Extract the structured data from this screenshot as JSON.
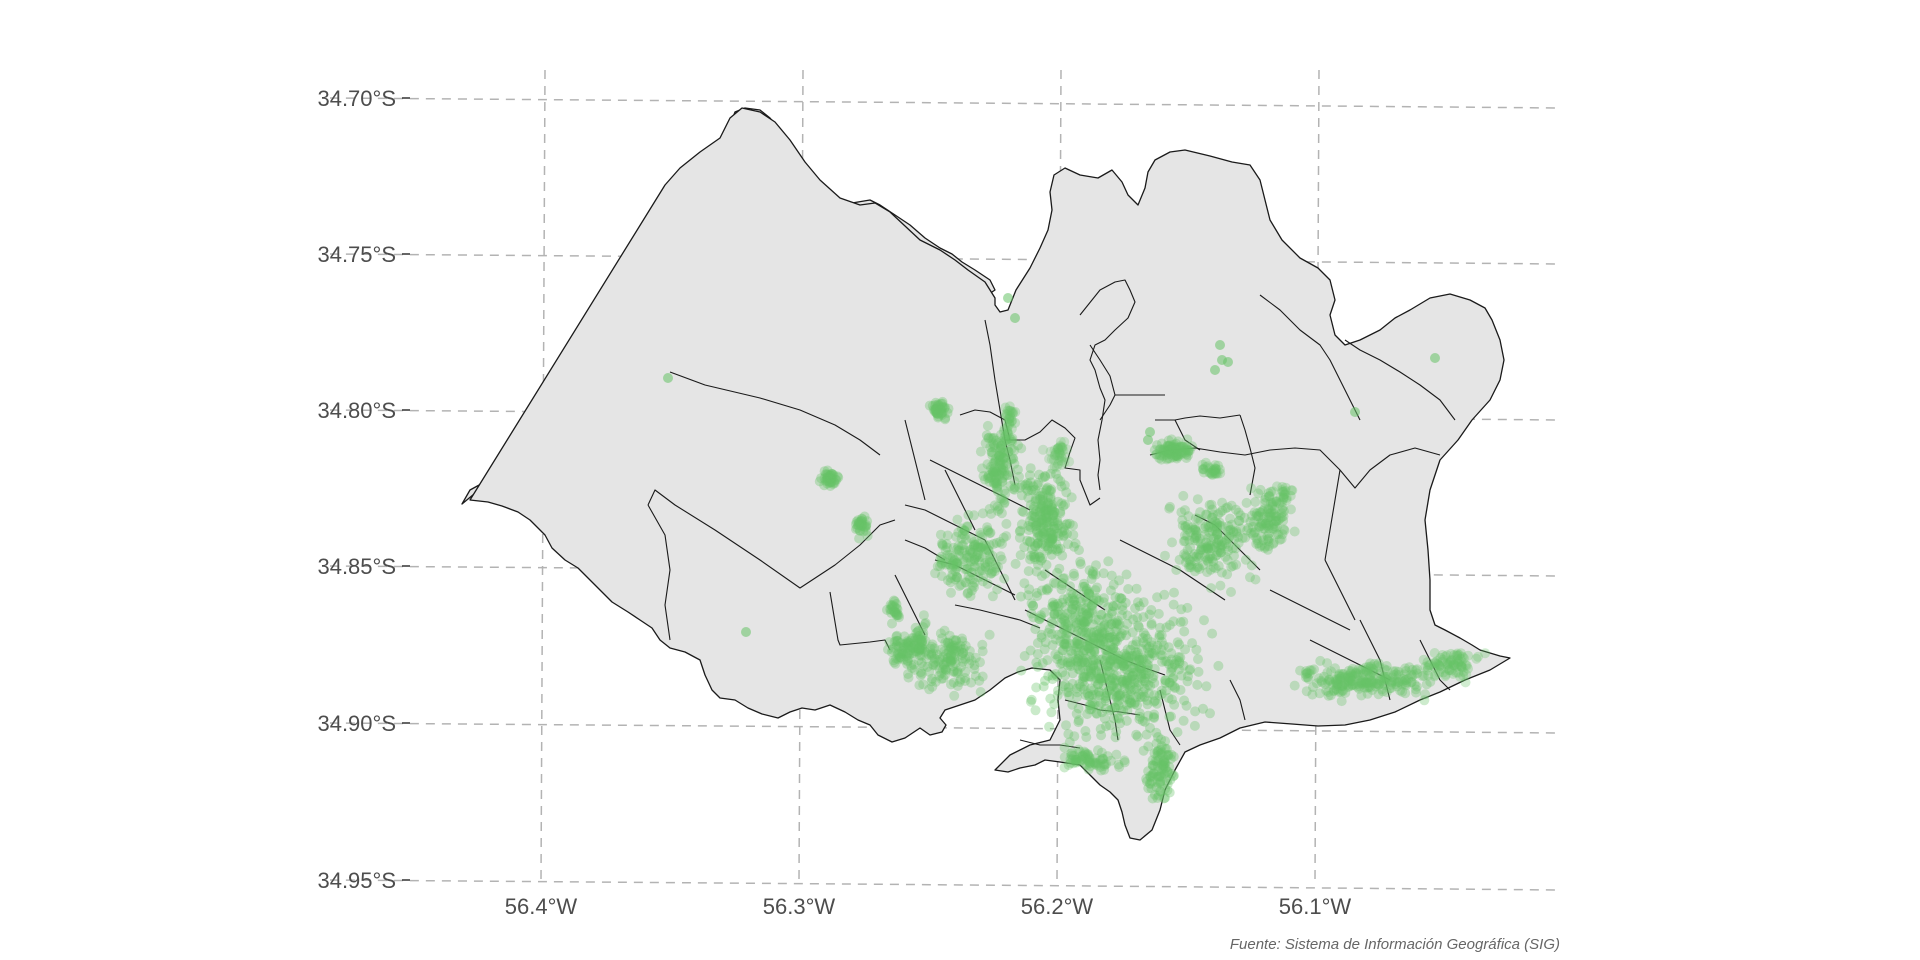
{
  "map": {
    "y_tick_labels": [
      "34.70°S",
      "34.75°S",
      "34.80°S",
      "34.85°S",
      "34.90°S",
      "34.95°S"
    ],
    "x_tick_labels": [
      "56.4°W",
      "56.3°W",
      "56.2°W",
      "56.1°W"
    ],
    "caption": "Fuente: Sistema de Información Geográfica (SIG)",
    "colors": {
      "land_fill": "#e5e5e5",
      "border": "#1a1a1a",
      "point": "#66c266",
      "gridline": "#b3b3b3",
      "text": "#4d4d4d"
    }
  }
}
